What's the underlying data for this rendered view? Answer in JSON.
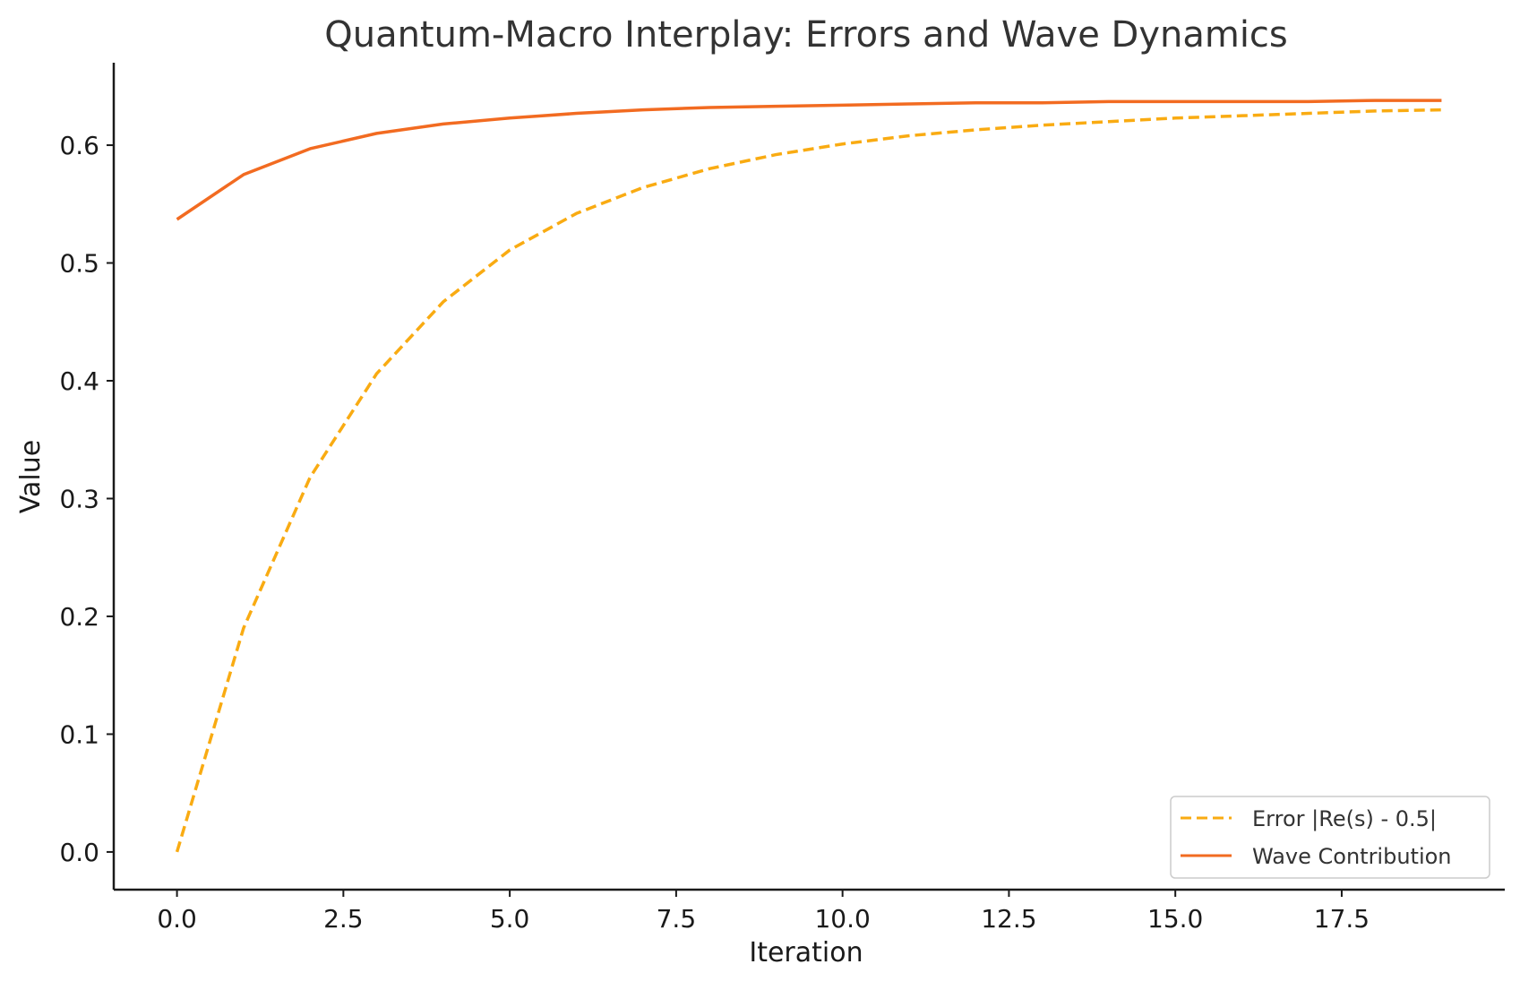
{
  "chart_data": {
    "type": "line",
    "title": "Quantum-Macro Interplay: Errors and Wave Dynamics",
    "xlabel": "Iteration",
    "ylabel": "Value",
    "xlim": [
      -0.95,
      19.95
    ],
    "ylim": [
      -0.032,
      0.67
    ],
    "x_ticks": [
      0.0,
      2.5,
      5.0,
      7.5,
      10.0,
      12.5,
      15.0,
      17.5
    ],
    "x_tick_labels": [
      "0.0",
      "2.5",
      "5.0",
      "7.5",
      "10.0",
      "12.5",
      "15.0",
      "17.5"
    ],
    "y_ticks": [
      0.0,
      0.1,
      0.2,
      0.3,
      0.4,
      0.5,
      0.6
    ],
    "y_tick_labels": [
      "0.0",
      "0.1",
      "0.2",
      "0.3",
      "0.4",
      "0.5",
      "0.6"
    ],
    "grid": false,
    "legend_position": "lower-right",
    "x": [
      0,
      1,
      2,
      3,
      4,
      5,
      6,
      7,
      8,
      9,
      10,
      11,
      12,
      13,
      14,
      15,
      16,
      17,
      18,
      19
    ],
    "series": [
      {
        "name": "Error |Re(s) - 0.5|",
        "color": "#f9ab12",
        "style": "dashed",
        "values": [
          0.0,
          0.19,
          0.318,
          0.406,
          0.467,
          0.511,
          0.542,
          0.564,
          0.58,
          0.592,
          0.601,
          0.608,
          0.613,
          0.617,
          0.62,
          0.623,
          0.625,
          0.627,
          0.629,
          0.63
        ]
      },
      {
        "name": "Wave Contribution",
        "color": "#f26b21",
        "style": "solid",
        "values": [
          0.537,
          0.575,
          0.597,
          0.61,
          0.618,
          0.623,
          0.627,
          0.63,
          0.632,
          0.633,
          0.634,
          0.635,
          0.636,
          0.636,
          0.637,
          0.637,
          0.637,
          0.637,
          0.638,
          0.638
        ]
      }
    ]
  }
}
